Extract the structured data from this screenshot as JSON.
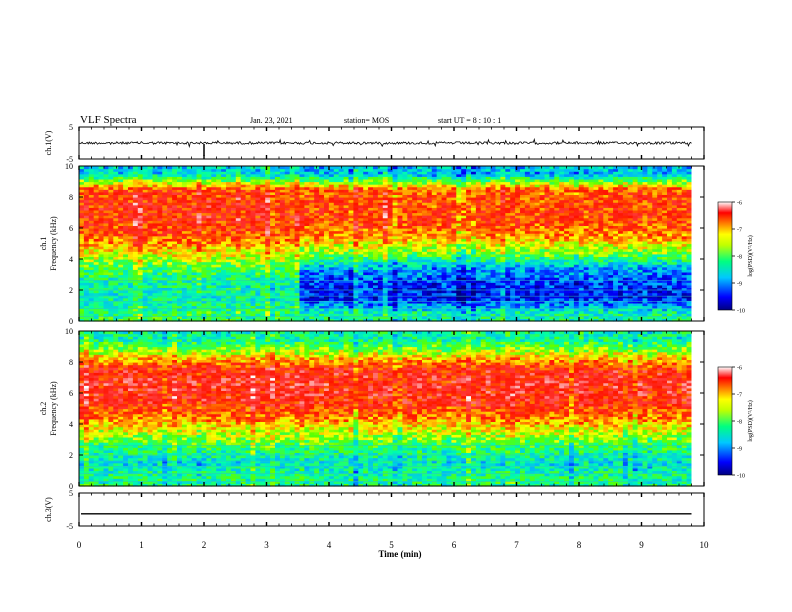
{
  "header": {
    "title": "VLF Spectra",
    "date": "Jan. 23, 2021",
    "station": "station= MOS",
    "start": "start  UT =   8 : 10 : 1"
  },
  "chart_data": [
    {
      "id": "ch1-waveform",
      "type": "line",
      "ylabel": "ch.1(V)",
      "ylim": [
        -5,
        5
      ],
      "yticks": [
        "5",
        "-5"
      ],
      "xlim": [
        0,
        10
      ],
      "series": [
        {
          "values_description_free": true,
          "baseline": 0.0,
          "noise_amplitude": 0.3
        }
      ]
    },
    {
      "id": "ch1-spectrogram",
      "type": "heatmap",
      "ylabel": "ch.1\nFrequency (kHz)",
      "ylim": [
        0,
        10
      ],
      "yticks": [
        "0",
        "2",
        "4",
        "6",
        "8",
        "10"
      ],
      "xlim": [
        0,
        10
      ],
      "colorbar": {
        "label": "log(PSD)(V²/Hz)",
        "range": [
          -10,
          -6
        ],
        "ticks": [
          "-6",
          "-7",
          "-8",
          "-9",
          "-10"
        ]
      },
      "time_min": [
        0,
        1,
        2,
        3,
        3.5,
        4,
        5,
        6,
        7,
        8,
        9,
        9.8
      ],
      "band_log_psd": {
        "freq_khz": [
          0.5,
          1.5,
          2.5,
          3.5,
          4.5,
          5.5,
          6.5,
          7.5,
          8.5,
          9.5
        ],
        "early_segment": [
          -8.3,
          -8.6,
          -8.5,
          -8.2,
          -7.5,
          -7.0,
          -6.8,
          -6.8,
          -6.9,
          -8.8
        ],
        "late_segment": [
          -8.5,
          -9.5,
          -9.4,
          -8.9,
          -7.9,
          -7.2,
          -6.9,
          -6.9,
          -7.0,
          -8.9
        ]
      }
    },
    {
      "id": "ch2-spectrogram",
      "type": "heatmap",
      "ylabel": "ch.2\nFrequency (kHz)",
      "ylim": [
        0,
        10
      ],
      "yticks": [
        "0",
        "2",
        "4",
        "6",
        "8",
        "10"
      ],
      "xlim": [
        0,
        10
      ],
      "colorbar": {
        "label": "log(PSD)(V²/Hz)",
        "range": [
          -10,
          -6
        ],
        "ticks": [
          "-6",
          "-7",
          "-8",
          "-9",
          "-10"
        ]
      },
      "band_log_psd": {
        "freq_khz": [
          0.5,
          1.5,
          2.5,
          3.5,
          4.5,
          5.5,
          6.5,
          7.5,
          8.5,
          9.5
        ],
        "log_psd": [
          -8.4,
          -8.7,
          -8.3,
          -7.7,
          -7.1,
          -6.7,
          -6.6,
          -6.7,
          -7.6,
          -8.5
        ]
      }
    },
    {
      "id": "ch3-waveform",
      "type": "line",
      "ylabel": "ch.3(V)",
      "ylim": [
        -5,
        5
      ],
      "yticks": [
        "5",
        "-5"
      ],
      "xlim": [
        0,
        10
      ],
      "series": [
        {
          "baseline": -1.3,
          "noise_amplitude": 0.05
        }
      ]
    }
  ],
  "xaxis": {
    "label": "Time (min)",
    "ticks": [
      "0",
      "1",
      "2",
      "3",
      "4",
      "5",
      "6",
      "7",
      "8",
      "9",
      "10"
    ]
  },
  "colors": {
    "scale": [
      "#00008b",
      "#0000ff",
      "#00c8ff",
      "#00ff7f",
      "#ffff00",
      "#ff7f00",
      "#ff0000",
      "#ffffff"
    ]
  }
}
